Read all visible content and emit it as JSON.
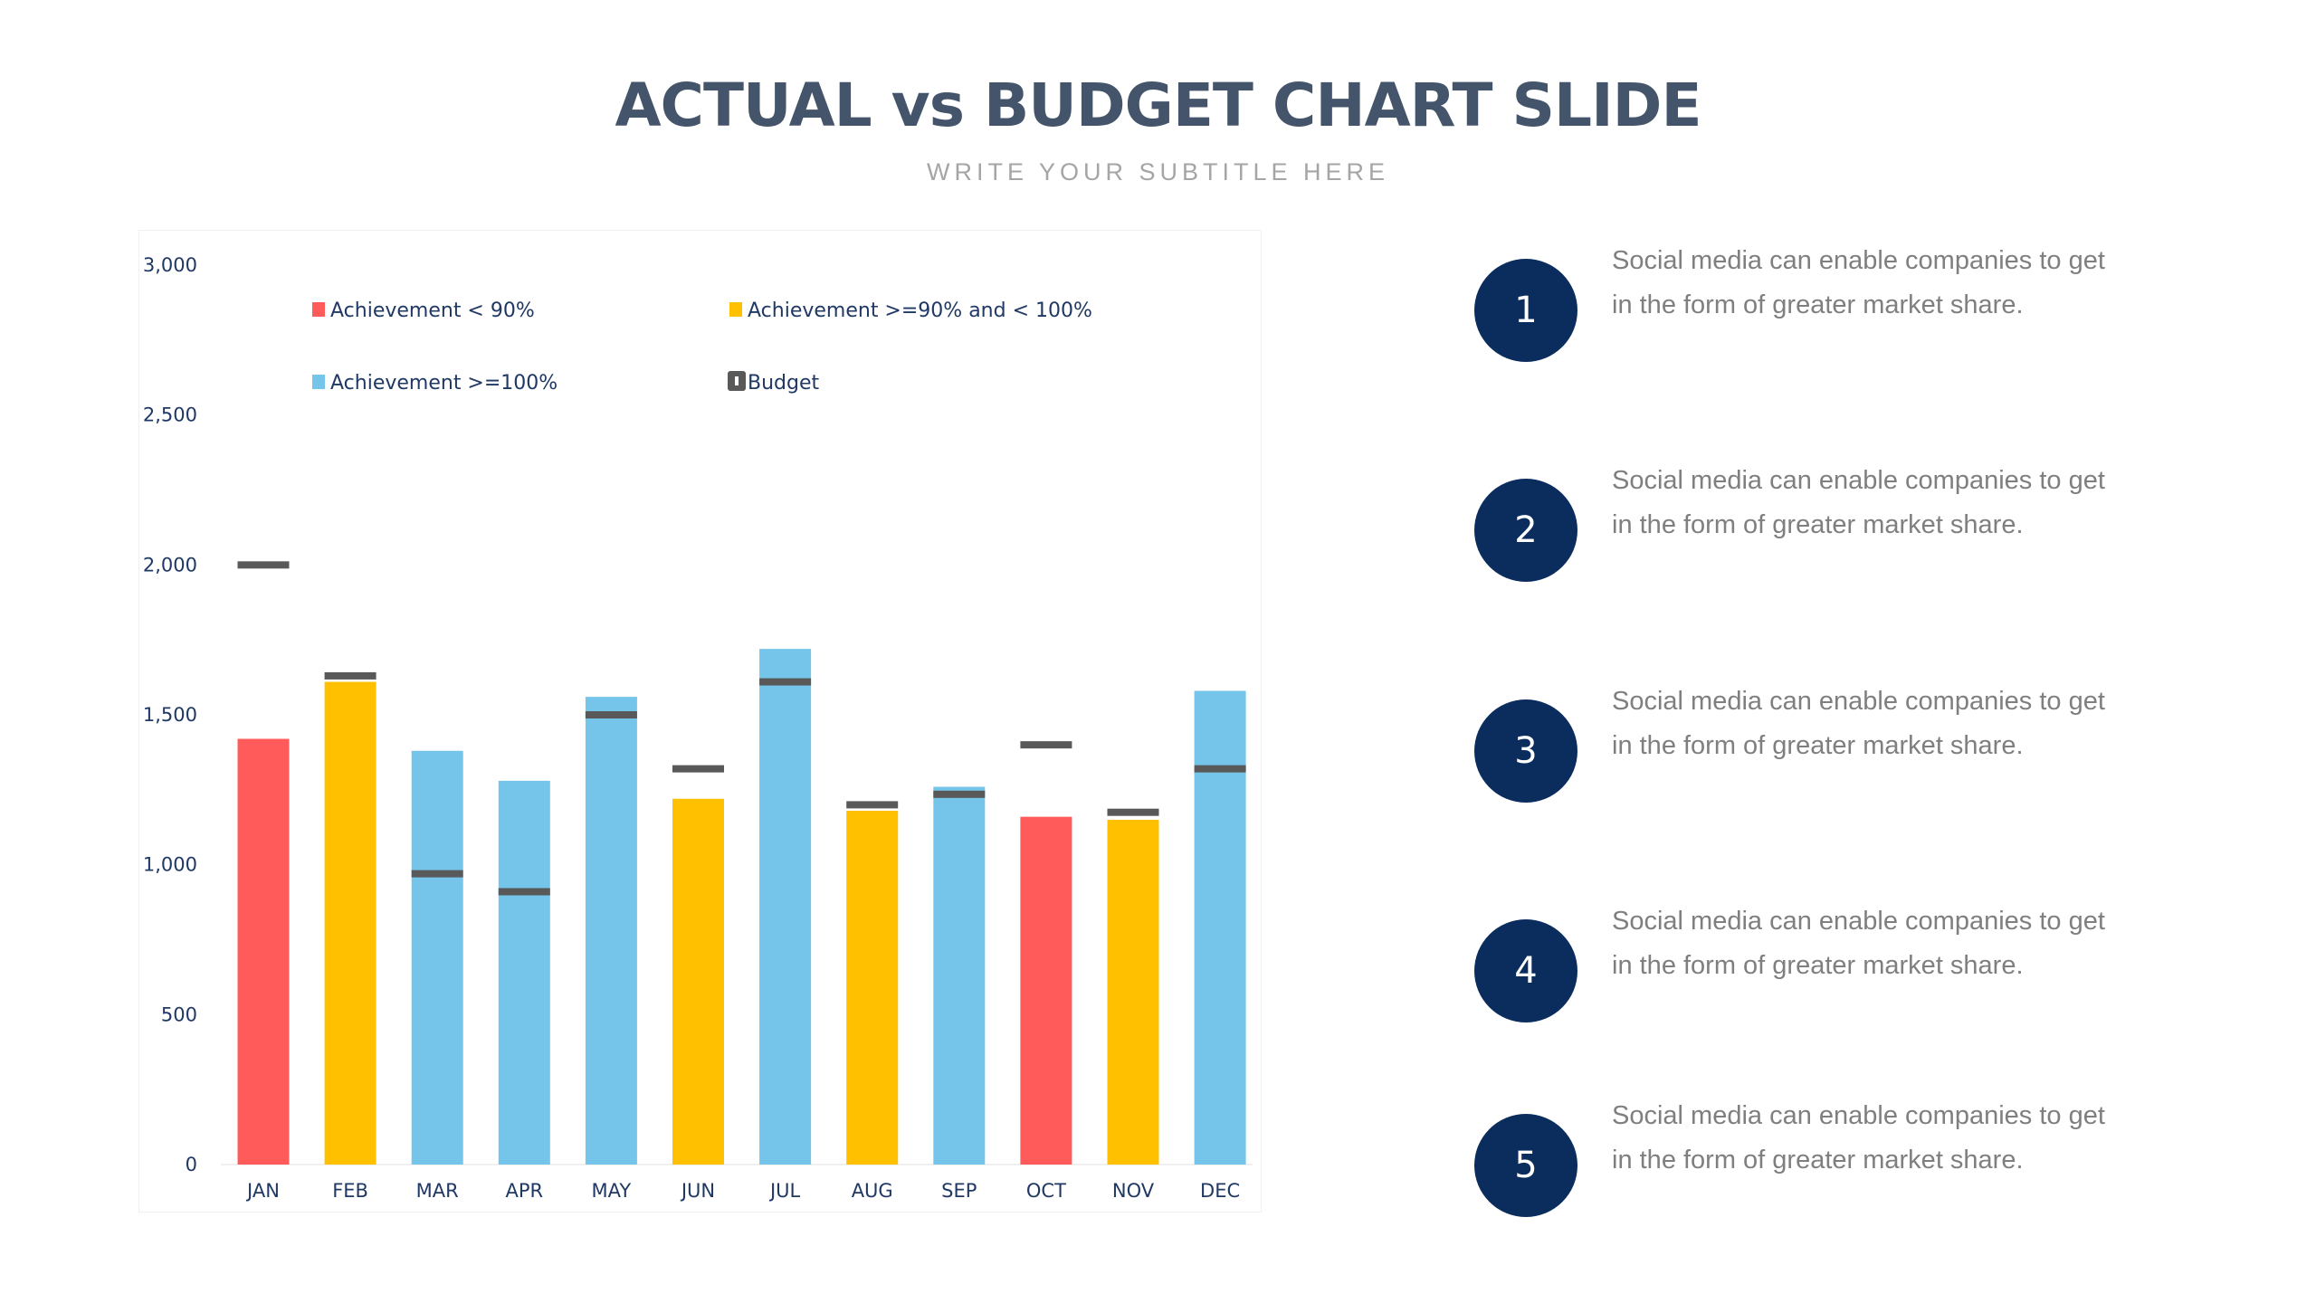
{
  "header": {
    "title": "ACTUAL vs BUDGET CHART SLIDE",
    "subtitle": "WRITE YOUR SUBTITLE HERE"
  },
  "chart_data": {
    "type": "bar",
    "categories": [
      "JAN",
      "FEB",
      "MAR",
      "APR",
      "MAY",
      "JUN",
      "JUL",
      "AUG",
      "SEP",
      "OCT",
      "NOV",
      "DEC"
    ],
    "series": [
      {
        "name": "Actual",
        "values": [
          1420,
          1610,
          1380,
          1280,
          1560,
          1220,
          1720,
          1180,
          1260,
          1160,
          1150,
          1580
        ]
      },
      {
        "name": "Budget",
        "values": [
          2000,
          1630,
          970,
          910,
          1500,
          1320,
          1610,
          1200,
          1235,
          1400,
          1175,
          1320
        ]
      }
    ],
    "legend": [
      {
        "label": "Achievement < 90%",
        "color": "#ff5b5b"
      },
      {
        "label": "Achievement >=90% and < 100%",
        "color": "#ffc000"
      },
      {
        "label": "Achievement >=100%",
        "color": "#75c5ea"
      },
      {
        "label": "Budget",
        "color": "#595959"
      }
    ],
    "ylim": [
      0,
      3000
    ],
    "yticks": [
      "0",
      "500",
      "1,000",
      "1,500",
      "2,000",
      "2,500",
      "3,000"
    ],
    "legend_position": "top",
    "grid": false
  },
  "items": [
    {
      "number": "1",
      "line1": "Social media can enable companies to get",
      "line2": "in the form of greater market share."
    },
    {
      "number": "2",
      "line1": "Social media can enable companies to get",
      "line2": "in the form of greater market share."
    },
    {
      "number": "3",
      "line1": "Social media can enable companies to get",
      "line2": "in the form of greater market share."
    },
    {
      "number": "4",
      "line1": "Social media can enable companies to get",
      "line2": "in the form of greater market share."
    },
    {
      "number": "5",
      "line1": "Social media can enable companies to get",
      "line2": "in the form of greater market share."
    }
  ]
}
